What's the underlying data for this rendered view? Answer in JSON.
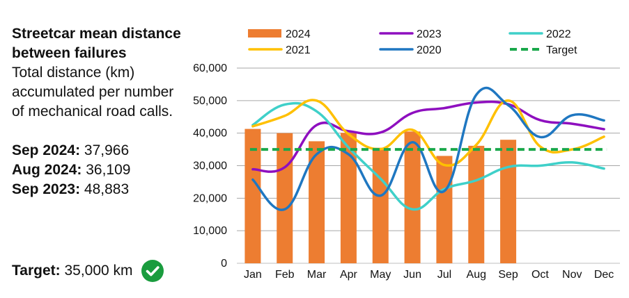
{
  "panel": {
    "title": "Streetcar mean distance between failures",
    "subtitle": "Total distance (km) accumulated per number of mechanical road calls.",
    "stats": [
      {
        "label": "Sep 2024:",
        "value": "37,966"
      },
      {
        "label": "Aug 2024:",
        "value": "36,109"
      },
      {
        "label": "Sep 2023:",
        "value": "48,883"
      }
    ],
    "target_label": "Target:",
    "target_value": "35,000 km",
    "target_status_icon": "check-circle-icon",
    "target_status_color": "#1a9c3e"
  },
  "chart_data": {
    "type": "bar",
    "title": "Streetcar mean distance between failures",
    "categories": [
      "Jan",
      "Feb",
      "Mar",
      "Apr",
      "May",
      "Jun",
      "Jul",
      "Aug",
      "Sep",
      "Oct",
      "Nov",
      "Dec"
    ],
    "y_ticks": [
      "0",
      "10,000",
      "20,000",
      "30,000",
      "40,000",
      "50,000",
      "60,000"
    ],
    "ylim": [
      0,
      60000
    ],
    "grid": true,
    "legend_position": "top",
    "bars": {
      "name": "2024",
      "color": "#ed7d31",
      "values": [
        41300,
        40000,
        37500,
        40100,
        35500,
        40500,
        33000,
        36109,
        37966,
        null,
        null,
        null
      ]
    },
    "series": [
      {
        "name": "2023",
        "color": "#8e0fbf",
        "type": "line",
        "values": [
          28900,
          29500,
          42500,
          40600,
          40200,
          46200,
          47700,
          49400,
          48883,
          44000,
          42900,
          41200
        ]
      },
      {
        "name": "2022",
        "color": "#3fd0c9",
        "type": "line",
        "values": [
          42500,
          48800,
          46700,
          35600,
          26000,
          16600,
          22800,
          25500,
          29600,
          30000,
          31000,
          29100
        ]
      },
      {
        "name": "2021",
        "color": "#ffc000",
        "type": "line",
        "values": [
          42100,
          45300,
          50000,
          39700,
          35100,
          41000,
          30200,
          36400,
          50000,
          35900,
          35000,
          38900
        ]
      },
      {
        "name": "2020",
        "color": "#1f77c1",
        "type": "line",
        "values": [
          25700,
          16600,
          33500,
          33500,
          20800,
          37200,
          22200,
          51800,
          48600,
          38800,
          45500,
          43900
        ]
      },
      {
        "name": "Target",
        "color": "#1aa84b",
        "type": "dashed",
        "values": [
          35000,
          35000,
          35000,
          35000,
          35000,
          35000,
          35000,
          35000,
          35000,
          35000,
          35000,
          35000
        ]
      }
    ],
    "legend": [
      {
        "name": "2024",
        "kind": "bar",
        "color": "#ed7d31"
      },
      {
        "name": "2023",
        "kind": "line",
        "color": "#8e0fbf"
      },
      {
        "name": "2022",
        "kind": "line",
        "color": "#3fd0c9"
      },
      {
        "name": "2021",
        "kind": "line",
        "color": "#ffc000"
      },
      {
        "name": "2020",
        "kind": "line",
        "color": "#1f77c1"
      },
      {
        "name": "Target",
        "kind": "dashed",
        "color": "#1aa84b"
      }
    ]
  }
}
